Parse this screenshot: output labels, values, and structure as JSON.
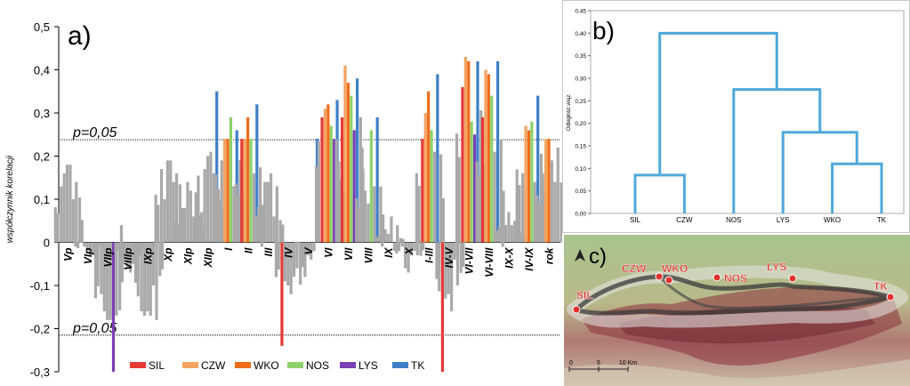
{
  "chart_data": [
    {
      "type": "bar",
      "panel_label": "a)",
      "title": "",
      "xlabel": "",
      "ylabel": "współczynnik korelacji",
      "ylim": [
        -0.3,
        0.5
      ],
      "yticks": [
        -0.3,
        -0.2,
        -0.1,
        0,
        0.1,
        0.2,
        0.3,
        0.4,
        0.5
      ],
      "ytick_labels": [
        "-0,3",
        "-0,2",
        "-0,1",
        "0",
        "0,1",
        "0,2",
        "0,3",
        "0,4",
        "0,5"
      ],
      "categories": [
        "Vp",
        "VIp",
        "VIIp",
        "VIIIp",
        "IXp",
        "Xp",
        "XIp",
        "XIIp",
        "I",
        "II",
        "III",
        "IV",
        "V",
        "VI",
        "VII",
        "VIII",
        "IX",
        "X",
        "I-III",
        "IV-V",
        "VI-VII",
        "VI-VIII",
        "IX-X",
        "IV-IX",
        "rok"
      ],
      "series": [
        {
          "name": "SIL",
          "color": "#e53935",
          "values": [
            0.13,
            0.0,
            -0.12,
            0.04,
            -0.16,
            0.17,
            0.04,
            0.07,
            0.19,
            0.24,
            -0.01,
            -0.24,
            -0.05,
            0.29,
            0.29,
            0.22,
            -0.01,
            -0.01,
            0.24,
            -0.3,
            0.36,
            0.29,
            -0.01,
            0.16,
            0.16
          ]
        },
        {
          "name": "CZW",
          "color": "#f4a460",
          "values": [
            0.16,
            -0.01,
            -0.16,
            -0.04,
            -0.17,
            0.1,
            0.08,
            0.17,
            0.24,
            0.24,
            0.14,
            -0.09,
            -0.08,
            0.31,
            0.41,
            0.12,
            0.03,
            -0.06,
            0.3,
            -0.13,
            0.43,
            0.4,
            0.04,
            0.27,
            0.24
          ]
        },
        {
          "name": "WKO",
          "color": "#ef6c1a",
          "values": [
            0.18,
            -0.02,
            -0.18,
            -0.06,
            -0.16,
            0.19,
            0.14,
            0.2,
            0.24,
            0.29,
            0.14,
            -0.1,
            -0.03,
            0.32,
            0.37,
            0.09,
            0.02,
            -0.07,
            0.35,
            -0.12,
            0.42,
            0.39,
            0.07,
            0.26,
            0.24
          ]
        },
        {
          "name": "NOS",
          "color": "#8fd16a",
          "values": [
            0.18,
            -0.03,
            -0.18,
            -0.07,
            -0.17,
            0.19,
            0.12,
            0.21,
            0.29,
            0.24,
            0.16,
            -0.12,
            -0.04,
            0.27,
            0.34,
            0.26,
            0.06,
            -0.03,
            0.26,
            -0.16,
            0.28,
            0.34,
            0.04,
            0.28,
            0.19
          ]
        },
        {
          "name": "LYS",
          "color": "#7b3fb5",
          "values": [
            0.1,
            -0.03,
            -0.3,
            -0.05,
            -0.1,
            0.14,
            0.06,
            0.16,
            0.13,
            0.16,
            0.06,
            -0.08,
            -0.02,
            0.24,
            0.26,
            0.13,
            -0.02,
            -0.02,
            0.21,
            -0.04,
            0.25,
            0.21,
            0.05,
            0.14,
            0.14
          ]
        },
        {
          "name": "TK",
          "color": "#3f7fc9",
          "values": [
            0.14,
            -0.01,
            -0.17,
            -0.07,
            -0.18,
            0.16,
            0.1,
            0.35,
            0.26,
            0.32,
            0.13,
            -0.06,
            0.24,
            0.33,
            0.38,
            0.29,
            0.04,
            -0.03,
            0.39,
            -0.1,
            0.42,
            0.42,
            0.08,
            0.34,
            0.22
          ]
        }
      ],
      "reference_lines": [
        {
          "label": "p=0,05",
          "value": 0.238
        },
        {
          "label": "p=0,05",
          "value": -0.215
        }
      ],
      "legend_position": "bottom-center"
    },
    {
      "type": "dendrogram",
      "panel_label": "b)",
      "ylabel": "Odległość wiąz.",
      "ylim": [
        0,
        0.45
      ],
      "yticks": [
        "0,00",
        "0,05",
        "0,10",
        "0,15",
        "0,20",
        "0,25",
        "0,30",
        "0,35",
        "0,40",
        "0,45"
      ],
      "leaves": [
        "SIL",
        "CZW",
        "NOS",
        "LYS",
        "WKO",
        "TK"
      ],
      "line_color": "#4fa8dc",
      "merges": [
        {
          "a": "WKO",
          "b": "TK",
          "height": 0.11
        },
        {
          "a": "LYS",
          "b": "WKO+TK",
          "height": 0.18
        },
        {
          "a": "NOS",
          "b": "LYS+WKO+TK",
          "height": 0.275
        },
        {
          "a": "SIL",
          "b": "CZW",
          "height": 0.085
        },
        {
          "a": "SIL+CZW",
          "b": "NOS+LYS+WKO+TK",
          "height": 0.4
        }
      ]
    }
  ],
  "map": {
    "panel_label": "c)",
    "stations": [
      "SIL",
      "CZW",
      "WKO",
      "NOS",
      "LYS",
      "TK"
    ],
    "scale_labels": [
      "0",
      "5",
      "10 Km"
    ],
    "north_arrow": "north-arrow-icon"
  }
}
